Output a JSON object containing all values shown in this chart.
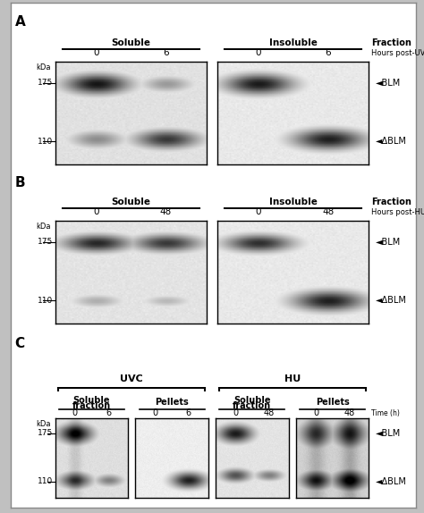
{
  "fig_w": 4.74,
  "fig_h": 5.74,
  "fig_bg": "#c8c8c8",
  "panel_bg": "#f0f0f0",
  "white_bg": "#ffffff",
  "outer_bg": "#b0b0b0",
  "panels": {
    "A": {
      "label": "A",
      "blot1_label": "Soluble",
      "blot2_label": "Insoluble",
      "fraction_label": "Fraction",
      "time_label": "Hours post-UVC",
      "times_left": [
        "0",
        "6"
      ],
      "times_right": [
        "0",
        "6"
      ],
      "kdas": [
        "175",
        "110"
      ],
      "right_labels": [
        "BLM",
        "ΔBLM"
      ]
    },
    "B": {
      "label": "B",
      "blot1_label": "Soluble",
      "blot2_label": "Insoluble",
      "fraction_label": "Fraction",
      "time_label": "Hours post-HU",
      "times_left": [
        "0",
        "48"
      ],
      "times_right": [
        "0",
        "48"
      ],
      "kdas": [
        "175",
        "110"
      ],
      "right_labels": [
        "BLM",
        "ΔBLM"
      ]
    },
    "C": {
      "label": "C",
      "group1_label": "UVC",
      "group2_label": "HU",
      "sub1_label": "Soluble\nfraction",
      "sub2_label": "Pellets",
      "sub3_label": "Soluble\nfraction",
      "sub4_label": "Pellets",
      "times": [
        "0",
        "6",
        "0",
        "6",
        "0",
        "48",
        "0",
        "48"
      ],
      "time_label": "Time (h)",
      "kdas": [
        "175",
        "110"
      ],
      "right_labels": [
        "BLM",
        "ΔBLM"
      ]
    }
  }
}
